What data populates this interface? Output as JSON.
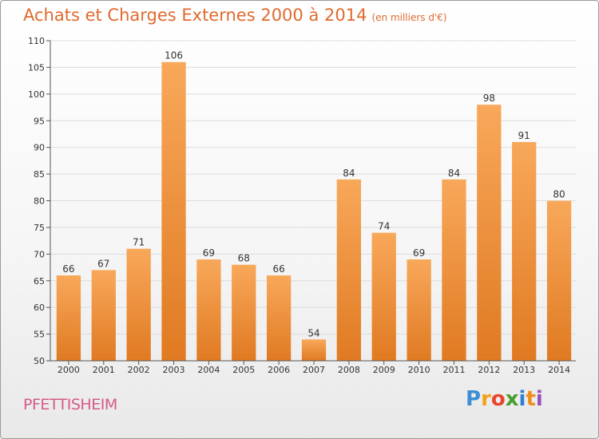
{
  "header": {
    "title": "Achats et Charges Externes 2000 à 2014",
    "unit": "(en milliers d'€)"
  },
  "footer": {
    "commune": "PFETTISHEIM",
    "logo": [
      "P",
      "r",
      "o",
      "x",
      "i",
      "t",
      "i"
    ],
    "logo_colors": [
      "#3d8fd4",
      "#f2a31b",
      "#e7462b",
      "#4a9e2f",
      "#2f7fd6",
      "#ef8e1c",
      "#9a4fc2"
    ]
  },
  "chart_data": {
    "type": "bar",
    "categories": [
      "2000",
      "2001",
      "2002",
      "2003",
      "2004",
      "2005",
      "2006",
      "2007",
      "2008",
      "2009",
      "2010",
      "2011",
      "2012",
      "2013",
      "2014"
    ],
    "values": [
      66,
      67,
      71,
      106,
      69,
      68,
      66,
      54,
      84,
      74,
      69,
      84,
      98,
      91,
      80
    ],
    "title": "Achats et Charges Externes 2000 à 2014",
    "ylim": [
      50,
      110
    ],
    "yticks": [
      50,
      55,
      60,
      65,
      70,
      75,
      80,
      85,
      90,
      95,
      100,
      105,
      110
    ],
    "grid": true,
    "bar_color_top": "#f8a85a",
    "bar_color_bottom": "#e07a22"
  }
}
